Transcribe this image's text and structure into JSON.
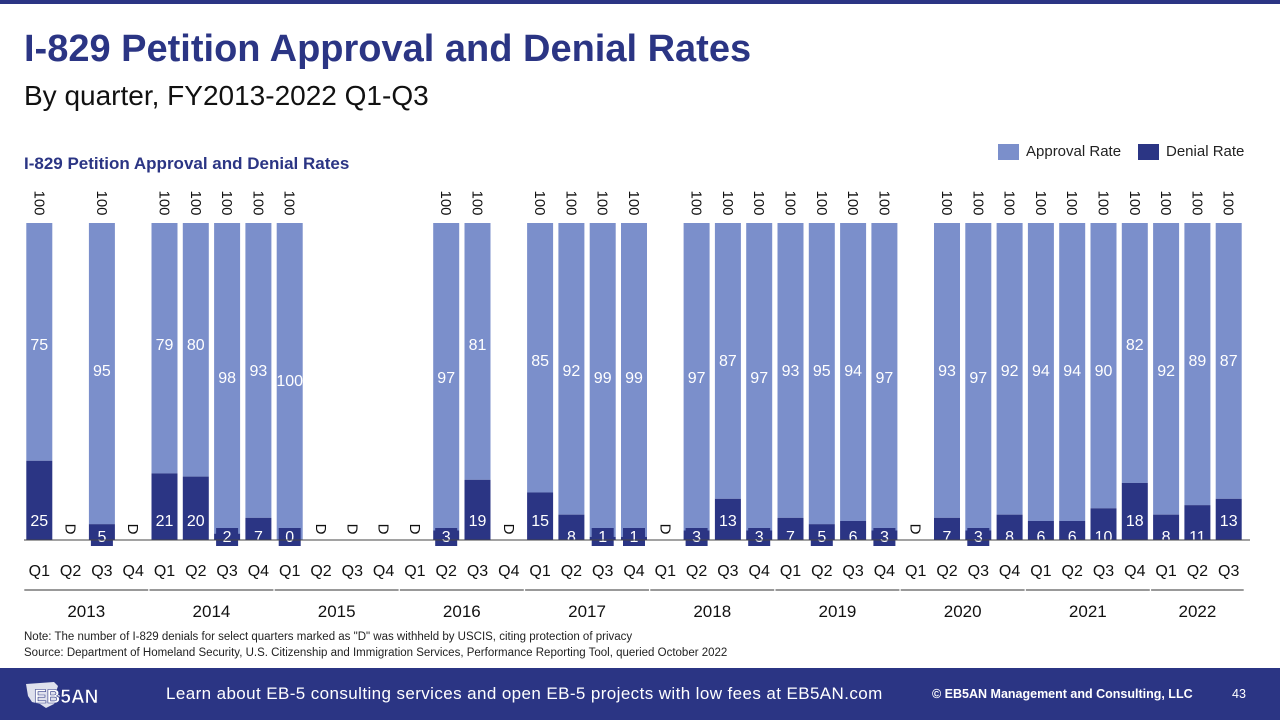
{
  "title": "I-829 Petition Approval and Denial Rates",
  "subtitle": "By quarter,  FY2013-2022 Q1-Q3",
  "note": "Note: The number of I-829 denials for select quarters marked as \"D\" was withheld by USCIS, citing protection of privacy",
  "source": "Source: Department of Homeland Security, U.S. Citizenship and Immigration Services, Performance Reporting Tool, queried October 2022",
  "footer": {
    "logo_text": "EB5AN",
    "tagline": "Learn about EB-5 consulting services and open EB-5 projects with low fees at EB5AN.com",
    "copyright": "© EB5AN Management and Consulting, LLC",
    "page_number": "43"
  },
  "colors": {
    "approval": "#7b8fcb",
    "denial": "#2b3584",
    "brand": "#2b3584"
  },
  "chart_data": {
    "type": "bar",
    "title": "I-829 Petition Approval and Denial Rates",
    "stacked": true,
    "legend": [
      "Approval Rate",
      "Denial Rate"
    ],
    "legend_position": "top-right",
    "total_label": "100",
    "withheld_marker": "D",
    "quarters": [
      "Q1",
      "Q2",
      "Q3",
      "Q4",
      "Q1",
      "Q2",
      "Q3",
      "Q4",
      "Q1",
      "Q2",
      "Q3",
      "Q4",
      "Q1",
      "Q2",
      "Q3",
      "Q4",
      "Q1",
      "Q2",
      "Q3",
      "Q4",
      "Q1",
      "Q2",
      "Q3",
      "Q4",
      "Q1",
      "Q2",
      "Q3",
      "Q4",
      "Q1",
      "Q2",
      "Q3",
      "Q4",
      "Q1",
      "Q2",
      "Q3",
      "Q4",
      "Q1",
      "Q2",
      "Q3"
    ],
    "years": [
      {
        "year": "2013",
        "count": 4
      },
      {
        "year": "2014",
        "count": 4
      },
      {
        "year": "2015",
        "count": 4
      },
      {
        "year": "2016",
        "count": 4
      },
      {
        "year": "2017",
        "count": 4
      },
      {
        "year": "2018",
        "count": 4
      },
      {
        "year": "2019",
        "count": 4
      },
      {
        "year": "2020",
        "count": 4
      },
      {
        "year": "2021",
        "count": 4
      },
      {
        "year": "2022",
        "count": 3
      }
    ],
    "series": [
      {
        "name": "Approval Rate",
        "values": [
          75,
          null,
          95,
          null,
          79,
          80,
          98,
          93,
          100,
          null,
          null,
          null,
          null,
          97,
          81,
          null,
          85,
          92,
          99,
          99,
          null,
          97,
          87,
          97,
          93,
          95,
          94,
          97,
          null,
          93,
          97,
          92,
          94,
          94,
          90,
          82,
          92,
          89,
          87
        ]
      },
      {
        "name": "Denial Rate",
        "values": [
          25,
          null,
          5,
          null,
          21,
          20,
          2,
          7,
          0,
          null,
          null,
          null,
          null,
          3,
          19,
          null,
          15,
          8,
          1,
          1,
          null,
          3,
          13,
          3,
          7,
          5,
          6,
          3,
          null,
          7,
          3,
          8,
          6,
          6,
          10,
          18,
          8,
          11,
          13
        ]
      }
    ],
    "ylim": [
      0,
      100
    ],
    "grid": false
  }
}
